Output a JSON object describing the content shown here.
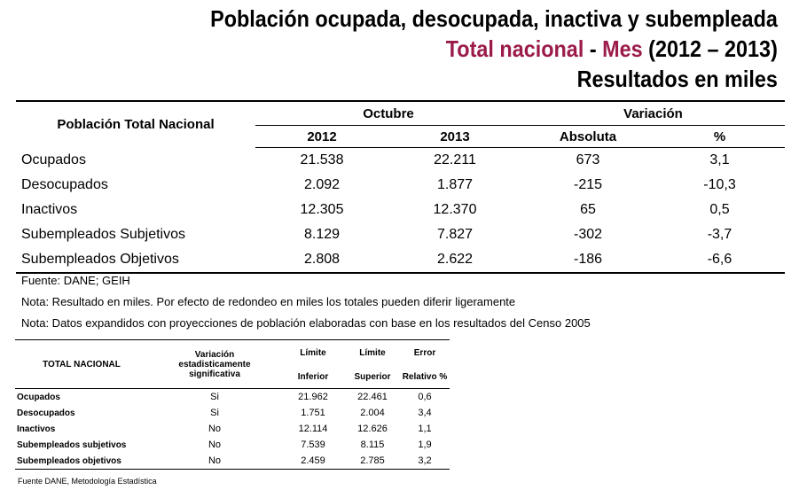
{
  "title": {
    "line1": "Población ocupada, desocupada, inactiva y subempleada",
    "line2_accent1": "Total nacional",
    "line2_sep": " - ",
    "line2_accent2": "Mes",
    "line2_rest": " (2012 – 2013)",
    "line3": "Resultados en miles"
  },
  "main_table": {
    "header_label": "Población Total Nacional",
    "group_octubre": "Octubre",
    "group_variacion": "Variación",
    "col_2012": "2012",
    "col_2013": "2013",
    "col_absoluta": "Absoluta",
    "col_pct": "%",
    "rows": [
      {
        "label": "Ocupados",
        "v2012": "21.538",
        "v2013": "22.211",
        "abs": "673",
        "pct": "3,1"
      },
      {
        "label": "Desocupados",
        "v2012": "2.092",
        "v2013": "1.877",
        "abs": "-215",
        "pct": "-10,3"
      },
      {
        "label": "Inactivos",
        "v2012": "12.305",
        "v2013": "12.370",
        "abs": "65",
        "pct": "0,5"
      },
      {
        "label": "Subempleados Subjetivos",
        "v2012": "8.129",
        "v2013": "7.827",
        "abs": "-302",
        "pct": "-3,7"
      },
      {
        "label": "Subempleados Objetivos",
        "v2012": "2.808",
        "v2013": "2.622",
        "abs": "-186",
        "pct": "-6,6"
      }
    ]
  },
  "notes": {
    "fuente": "Fuente: DANE; GEIH",
    "nota1": "Nota: Resultado en miles. Por efecto de redondeo en miles los totales pueden diferir ligeramente",
    "nota2": "Nota: Datos expandidos con proyecciones de población elaboradas con base en los resultados del Censo 2005"
  },
  "small_table": {
    "header_label": "TOTAL NACIONAL",
    "col_var_l1": "Variación",
    "col_var_l2": "estadisticamente",
    "col_var_l3": "significativa",
    "col_li_l1": "Límite",
    "col_li_l2": "Inferior",
    "col_ls_l1": "Límite",
    "col_ls_l2": "Superior",
    "col_err_l1": "Error",
    "col_err_l2": "Relativo %",
    "rows": [
      {
        "label": "Ocupados",
        "sig": "Si",
        "li": "21.962",
        "ls": "22.461",
        "err": "0,6"
      },
      {
        "label": "Desocupados",
        "sig": "Si",
        "li": "1.751",
        "ls": "2.004",
        "err": "3,4"
      },
      {
        "label": "Inactivos",
        "sig": "No",
        "li": "12.114",
        "ls": "12.626",
        "err": "1,1"
      },
      {
        "label": "Subempleados subjetivos",
        "sig": "No",
        "li": "7.539",
        "ls": "8.115",
        "err": "1,9"
      },
      {
        "label": "Subempleados objetivos",
        "sig": "No",
        "li": "2.459",
        "ls": "2.785",
        "err": "3,2"
      }
    ],
    "source": "Fuente DANE, Metodología Estadística"
  }
}
